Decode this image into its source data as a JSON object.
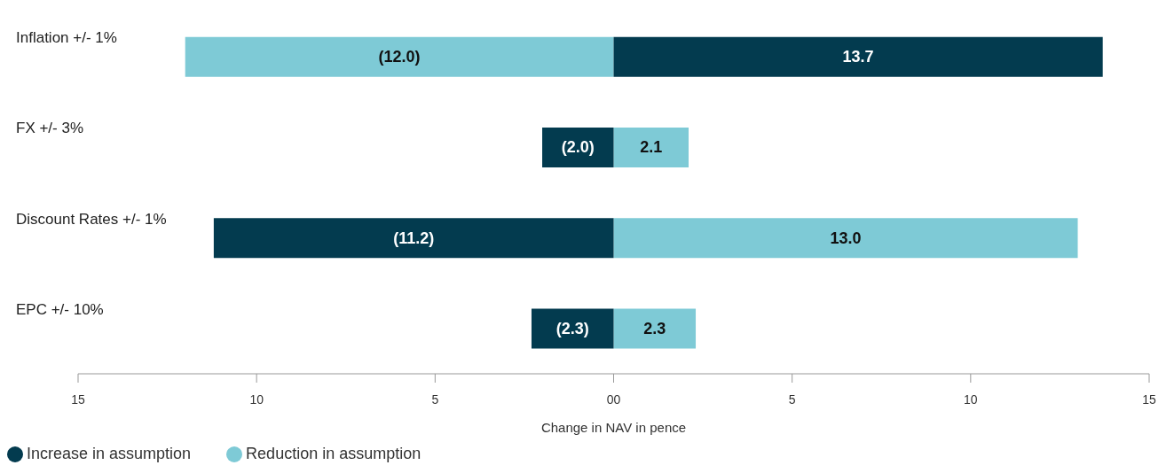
{
  "chart_data": {
    "type": "bar",
    "orientation": "horizontal",
    "stacked": true,
    "xlabel": "Change in NAV in pence",
    "categories": [
      "Inflation +/- 1%",
      "FX +/- 3%",
      "Discount Rates +/- 1%",
      "EPC +/- 10%"
    ],
    "series": [
      {
        "name": "Reduction in assumption",
        "color": "#7ecad6",
        "values": [
          -12.0,
          2.1,
          13.0,
          2.3
        ],
        "value_labels": [
          "(12.0)",
          "2.1",
          "13.0",
          "2.3"
        ]
      },
      {
        "name": "Increase in assumption",
        "color": "#033b4f",
        "values": [
          13.7,
          -2.0,
          -11.2,
          -2.3
        ],
        "value_labels": [
          "13.7",
          "(2.0)",
          "(11.2)",
          "(2.3)"
        ]
      }
    ],
    "xlim": [
      -15,
      15
    ],
    "xticks": [
      {
        "value": -15,
        "label": "15"
      },
      {
        "value": -10,
        "label": "10"
      },
      {
        "value": -5,
        "label": "5"
      },
      {
        "value": 0,
        "label": "00"
      },
      {
        "value": 5,
        "label": "5"
      },
      {
        "value": 10,
        "label": "10"
      },
      {
        "value": 15,
        "label": "15"
      }
    ],
    "grid": false,
    "legend": "bottom left"
  }
}
